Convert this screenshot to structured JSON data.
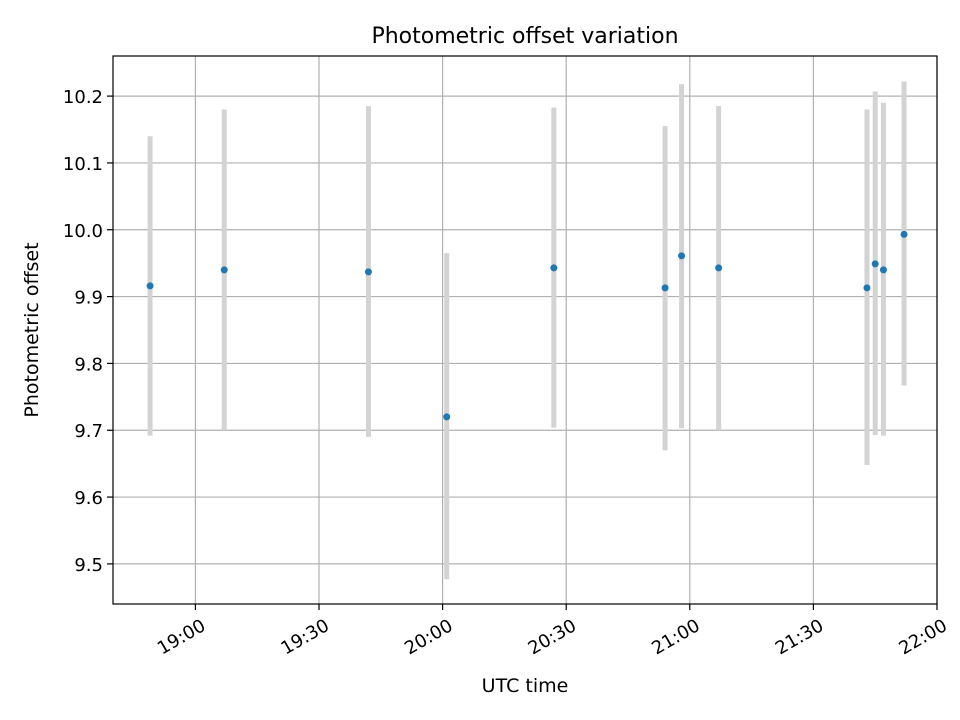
{
  "chart_data": {
    "type": "scatter",
    "title": "Photometric offset variation",
    "xlabel": "UTC time",
    "ylabel": "Photometric offset",
    "x_axis": {
      "kind": "time",
      "range": [
        "18:40",
        "22:00"
      ],
      "ticks": [
        "19:00",
        "19:30",
        "20:00",
        "20:30",
        "21:00",
        "21:30",
        "22:00"
      ]
    },
    "y_axis": {
      "range": [
        9.44,
        10.26
      ],
      "ticks": [
        "9.5",
        "9.6",
        "9.7",
        "9.8",
        "9.9",
        "10.0",
        "10.1",
        "10.2"
      ]
    },
    "grid": true,
    "points": [
      {
        "x": "18:49",
        "y": 9.916,
        "ylow": 9.692,
        "yhigh": 10.14
      },
      {
        "x": "19:07",
        "y": 9.94,
        "ylow": 9.7,
        "yhigh": 10.18
      },
      {
        "x": "19:42",
        "y": 9.937,
        "ylow": 9.69,
        "yhigh": 10.185
      },
      {
        "x": "20:01",
        "y": 9.72,
        "ylow": 9.477,
        "yhigh": 9.965
      },
      {
        "x": "20:27",
        "y": 9.943,
        "ylow": 9.704,
        "yhigh": 10.183
      },
      {
        "x": "20:54",
        "y": 9.913,
        "ylow": 9.67,
        "yhigh": 10.155
      },
      {
        "x": "20:58",
        "y": 9.961,
        "ylow": 9.703,
        "yhigh": 10.218
      },
      {
        "x": "21:07",
        "y": 9.943,
        "ylow": 9.7,
        "yhigh": 10.185
      },
      {
        "x": "21:43",
        "y": 9.913,
        "ylow": 9.648,
        "yhigh": 10.18
      },
      {
        "x": "21:45",
        "y": 9.949,
        "ylow": 9.693,
        "yhigh": 10.207
      },
      {
        "x": "21:47",
        "y": 9.94,
        "ylow": 9.692,
        "yhigh": 10.19
      },
      {
        "x": "21:52",
        "y": 9.993,
        "ylow": 9.767,
        "yhigh": 10.222
      }
    ],
    "colors": {
      "marker": "#1f77b4",
      "errorbar": "#d3d3d3",
      "grid": "#b0b0b0",
      "axes": "#000000"
    }
  }
}
